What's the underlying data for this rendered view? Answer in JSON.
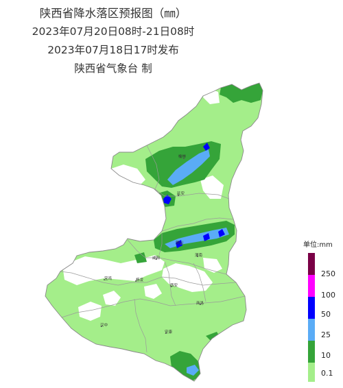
{
  "header": {
    "title": "陕西省降水落区预报图（㎜）",
    "valid_period": "2023年07月20日08时-21日08时",
    "issued": "2023年07月18日17时发布",
    "issuer": "陕西省气象台  制"
  },
  "legend": {
    "title": "单位:mm",
    "bands": [
      {
        "label": "250",
        "color": "#7a0046"
      },
      {
        "label": "100",
        "color": "#ff00ff"
      },
      {
        "label": "50",
        "color": "#0000fe"
      },
      {
        "label": "25",
        "color": "#5aacf6"
      },
      {
        "label": "10",
        "color": "#35a439"
      },
      {
        "label": "0.1",
        "color": "#a4ee8a"
      }
    ]
  },
  "cities": [
    {
      "name": "榆林"
    },
    {
      "name": "延安"
    },
    {
      "name": "铜川"
    },
    {
      "name": "渭南"
    },
    {
      "name": "咸阳"
    },
    {
      "name": "宝鸡"
    },
    {
      "name": "西安"
    },
    {
      "name": "杨凌"
    },
    {
      "name": "商洛"
    },
    {
      "name": "汉中"
    },
    {
      "name": "安康"
    }
  ],
  "colors": {
    "light_rain": "#a4ee8a",
    "moderate_rain": "#35a439",
    "heavy_rain": "#5aacf6",
    "rainstorm": "#0000fe",
    "no_rain": "#ffffff",
    "border": "#888888"
  }
}
